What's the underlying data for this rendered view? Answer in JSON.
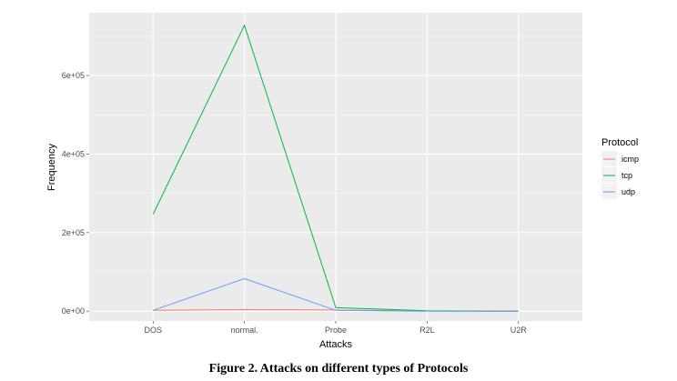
{
  "chart_data": {
    "type": "line",
    "xlabel": "Attacks",
    "ylabel": "Frequency",
    "categories": [
      "DOS",
      "normal.",
      "Probe",
      "R2L",
      "U2R"
    ],
    "ylim": [
      -25000,
      760000
    ],
    "yticks": [
      0,
      200000,
      400000,
      600000
    ],
    "ytick_labels": [
      "0e+00",
      "2e+05",
      "4e+05",
      "6e+05"
    ],
    "legend": {
      "title": "Protocol",
      "position": "right"
    },
    "grid": true,
    "panel_background": "#ebebeb",
    "grid_color": "#ffffff",
    "series": [
      {
        "name": "icmp",
        "color": "#f8766d",
        "values": [
          2000,
          4000,
          3000,
          500,
          100
        ]
      },
      {
        "name": "tcp",
        "color": "#00ba38",
        "values": [
          247000,
          728000,
          9000,
          1000,
          0
        ]
      },
      {
        "name": "udp",
        "color": "#619cff",
        "values": [
          2000,
          83000,
          2000,
          0,
          0
        ]
      }
    ]
  },
  "caption": "Figure 2. Attacks on different types of Protocols"
}
